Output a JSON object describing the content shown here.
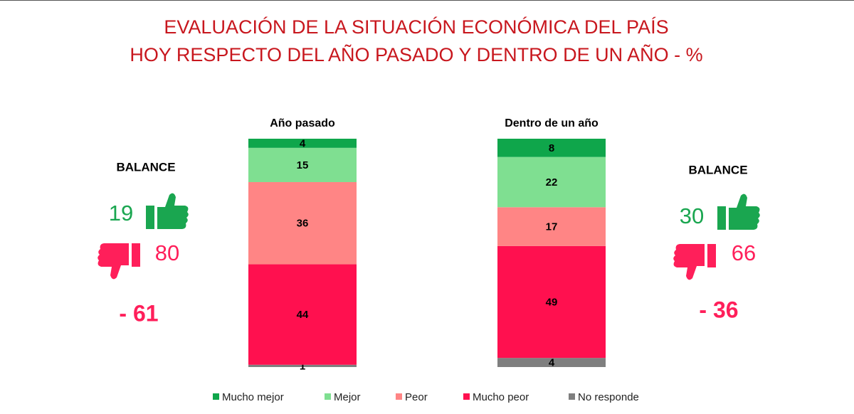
{
  "chart_data": {
    "type": "stacked_bar",
    "title": [
      "EVALUACIÓN DE LA SITUACIÓN ECONÓMICA DEL PAÍS",
      "HOY RESPECTO DEL AÑO PASADO Y DENTRO DE UN AÑO - %"
    ],
    "categories": [
      "Año pasado",
      "Dentro de un año"
    ],
    "series": [
      {
        "name": "Mucho mejor",
        "color": "#0fa64b",
        "values": [
          4,
          8
        ]
      },
      {
        "name": "Mejor",
        "color": "#7fdf91",
        "values": [
          15,
          22
        ]
      },
      {
        "name": "Peor",
        "color": "#ff8585",
        "values": [
          36,
          17
        ]
      },
      {
        "name": "Mucho peor",
        "color": "#ff104f",
        "values": [
          44,
          49
        ]
      },
      {
        "name": "No responde",
        "color": "#7f7f7f",
        "values": [
          1,
          4
        ]
      }
    ]
  },
  "balances": [
    {
      "title": "BALANCE",
      "positive": 19,
      "negative": 80,
      "net": "- 61"
    },
    {
      "title": "BALANCE",
      "positive": 30,
      "negative": 66,
      "net": "- 36"
    }
  ]
}
